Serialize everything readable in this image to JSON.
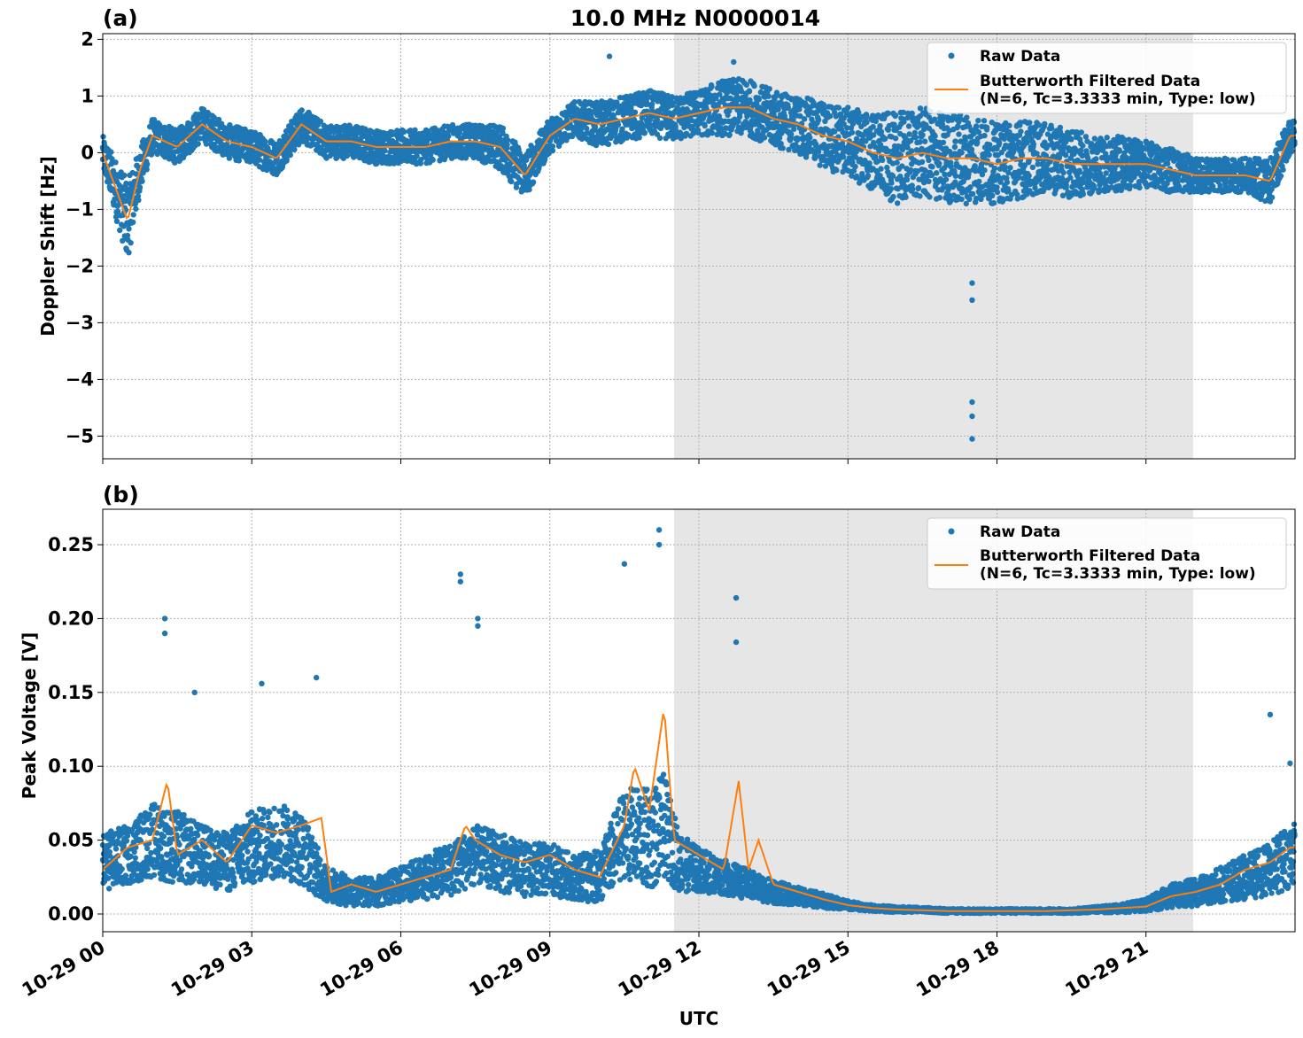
{
  "figure": {
    "title": "10.0 MHz N0000014",
    "xlabel": "UTC"
  },
  "colors": {
    "raw": "#1f77b4",
    "filtered": "#ff7f0e",
    "shade": "#e6e6e6",
    "grid": "#b0b0b0"
  },
  "chart_data": [
    {
      "type": "scatter",
      "panel_label": "(a)",
      "ylabel": "Doppler Shift [Hz]",
      "xlim_hours": [
        0,
        24
      ],
      "ylim": [
        -5.4,
        2.1
      ],
      "yticks": [
        2,
        1,
        0,
        -1,
        -2,
        -3,
        -4,
        -5
      ],
      "ytick_labels": [
        "2",
        "1",
        "0",
        "−1",
        "−2",
        "−3",
        "−4",
        "−5"
      ],
      "xticks_hours": [
        0,
        3,
        6,
        9,
        12,
        15,
        18,
        21
      ],
      "grid": true,
      "legend_position": "top-right",
      "shaded_span_hours": [
        11.5,
        21.95
      ],
      "series": [
        {
          "name": "Raw Data",
          "style": "points",
          "x_hours": [
            0,
            0.25,
            0.5,
            0.75,
            1.0,
            1.5,
            2.0,
            2.5,
            3.0,
            3.5,
            4.0,
            4.5,
            5.0,
            5.5,
            6.0,
            6.5,
            7.0,
            7.5,
            8.0,
            8.5,
            9.0,
            9.5,
            10.0,
            10.5,
            11.0,
            11.5,
            12.0,
            12.5,
            13.0,
            13.5,
            14.0,
            14.5,
            15.0,
            15.5,
            16.0,
            16.5,
            17.0,
            17.5,
            18.0,
            18.5,
            19.0,
            19.5,
            20.0,
            20.5,
            21.0,
            21.5,
            22.0,
            22.5,
            23.0,
            23.5,
            23.9
          ],
          "center": [
            0.0,
            -0.6,
            -1.2,
            -0.3,
            0.3,
            0.1,
            0.5,
            0.2,
            0.1,
            -0.1,
            0.5,
            0.2,
            0.2,
            0.1,
            0.1,
            0.1,
            0.2,
            0.2,
            0.1,
            -0.4,
            0.3,
            0.6,
            0.5,
            0.6,
            0.7,
            0.6,
            0.7,
            0.8,
            0.8,
            0.6,
            0.5,
            0.3,
            0.2,
            0.0,
            -0.1,
            0.0,
            -0.1,
            -0.1,
            -0.2,
            -0.1,
            -0.1,
            -0.2,
            -0.2,
            -0.2,
            -0.2,
            -0.3,
            -0.4,
            -0.4,
            -0.4,
            -0.5,
            0.3
          ],
          "spread": [
            0.3,
            0.5,
            0.7,
            0.4,
            0.3,
            0.3,
            0.3,
            0.3,
            0.3,
            0.3,
            0.3,
            0.3,
            0.3,
            0.3,
            0.3,
            0.3,
            0.3,
            0.3,
            0.4,
            0.4,
            0.3,
            0.3,
            0.4,
            0.4,
            0.4,
            0.4,
            0.4,
            0.5,
            0.5,
            0.5,
            0.5,
            0.6,
            0.6,
            0.7,
            0.8,
            0.8,
            0.8,
            0.8,
            0.7,
            0.7,
            0.6,
            0.6,
            0.5,
            0.5,
            0.4,
            0.4,
            0.3,
            0.3,
            0.3,
            0.4,
            0.3
          ],
          "outliers": [
            [
              17.5,
              -2.3
            ],
            [
              17.5,
              -2.6
            ],
            [
              17.5,
              -4.4
            ],
            [
              17.5,
              -4.65
            ],
            [
              17.5,
              -5.05
            ],
            [
              10.2,
              1.7
            ],
            [
              12.7,
              1.6
            ]
          ]
        },
        {
          "name": "Butterworth Filtered Data\n(N=6, Tc=3.3333 min, Type: low)",
          "style": "line",
          "x_hours": [
            0,
            0.25,
            0.5,
            0.75,
            1.0,
            1.5,
            2.0,
            2.5,
            3.0,
            3.5,
            4.0,
            4.5,
            5.0,
            5.5,
            6.0,
            6.5,
            7.0,
            7.5,
            8.0,
            8.5,
            9.0,
            9.5,
            10.0,
            10.5,
            11.0,
            11.5,
            12.0,
            12.5,
            13.0,
            13.5,
            14.0,
            14.5,
            15.0,
            15.5,
            16.0,
            16.5,
            17.0,
            17.5,
            18.0,
            18.5,
            19.0,
            19.5,
            20.0,
            20.5,
            21.0,
            21.5,
            22.0,
            22.5,
            23.0,
            23.5,
            23.9
          ],
          "y": [
            0.0,
            -0.6,
            -1.2,
            -0.3,
            0.3,
            0.1,
            0.5,
            0.2,
            0.1,
            -0.1,
            0.5,
            0.2,
            0.2,
            0.1,
            0.1,
            0.1,
            0.2,
            0.2,
            0.1,
            -0.4,
            0.3,
            0.6,
            0.5,
            0.6,
            0.7,
            0.6,
            0.7,
            0.8,
            0.8,
            0.6,
            0.5,
            0.3,
            0.2,
            0.0,
            -0.1,
            0.0,
            -0.1,
            -0.1,
            -0.2,
            -0.1,
            -0.1,
            -0.2,
            -0.2,
            -0.2,
            -0.2,
            -0.3,
            -0.4,
            -0.4,
            -0.4,
            -0.5,
            0.3
          ]
        }
      ]
    },
    {
      "type": "scatter",
      "panel_label": "(b)",
      "ylabel": "Peak Voltage [V]",
      "xlim_hours": [
        0,
        24
      ],
      "ylim": [
        -0.012,
        0.274
      ],
      "yticks": [
        0.25,
        0.2,
        0.15,
        0.1,
        0.05,
        0.0
      ],
      "ytick_labels": [
        "0.25",
        "0.20",
        "0.15",
        "0.10",
        "0.05",
        "0.00"
      ],
      "xticks_hours": [
        0,
        3,
        6,
        9,
        12,
        15,
        18,
        21
      ],
      "xtick_labels": [
        "10-29 00",
        "10-29 03",
        "10-29 06",
        "10-29 09",
        "10-29 12",
        "10-29 15",
        "10-29 18",
        "10-29 21"
      ],
      "grid": true,
      "legend_position": "top-right",
      "shaded_span_hours": [
        11.5,
        21.95
      ],
      "series": [
        {
          "name": "Raw Data",
          "style": "points",
          "x_hours": [
            0,
            0.5,
            1.0,
            1.5,
            2.0,
            2.5,
            3.0,
            3.5,
            4.0,
            4.5,
            5.0,
            5.5,
            6.0,
            6.5,
            7.0,
            7.5,
            8.0,
            8.5,
            9.0,
            9.5,
            10.0,
            10.5,
            11.0,
            11.3,
            11.6,
            12.0,
            12.5,
            13.0,
            13.5,
            14.0,
            14.5,
            15.0,
            15.5,
            16.0,
            16.5,
            17.0,
            17.5,
            18.0,
            18.5,
            19.0,
            19.5,
            20.0,
            20.5,
            21.0,
            21.5,
            22.0,
            22.5,
            23.0,
            23.5,
            23.9
          ],
          "center": [
            0.035,
            0.04,
            0.05,
            0.045,
            0.04,
            0.035,
            0.045,
            0.05,
            0.045,
            0.02,
            0.015,
            0.015,
            0.02,
            0.025,
            0.03,
            0.04,
            0.035,
            0.03,
            0.03,
            0.025,
            0.025,
            0.055,
            0.05,
            0.06,
            0.035,
            0.03,
            0.025,
            0.02,
            0.015,
            0.012,
            0.009,
            0.006,
            0.004,
            0.003,
            0.003,
            0.002,
            0.002,
            0.002,
            0.002,
            0.002,
            0.002,
            0.003,
            0.004,
            0.006,
            0.012,
            0.015,
            0.02,
            0.025,
            0.03,
            0.04
          ],
          "spread": [
            0.02,
            0.02,
            0.025,
            0.025,
            0.02,
            0.02,
            0.025,
            0.025,
            0.025,
            0.012,
            0.01,
            0.01,
            0.012,
            0.015,
            0.018,
            0.02,
            0.02,
            0.018,
            0.018,
            0.015,
            0.018,
            0.03,
            0.035,
            0.035,
            0.02,
            0.015,
            0.012,
            0.01,
            0.008,
            0.006,
            0.005,
            0.003,
            0.002,
            0.002,
            0.0015,
            0.0015,
            0.0015,
            0.0015,
            0.0015,
            0.0015,
            0.0015,
            0.002,
            0.003,
            0.004,
            0.008,
            0.01,
            0.012,
            0.015,
            0.018,
            0.022
          ],
          "outliers": [
            [
              1.25,
              0.2
            ],
            [
              1.25,
              0.19
            ],
            [
              7.2,
              0.23
            ],
            [
              7.2,
              0.225
            ],
            [
              7.55,
              0.2
            ],
            [
              7.55,
              0.195
            ],
            [
              10.5,
              0.237
            ],
            [
              11.2,
              0.26
            ],
            [
              11.2,
              0.25
            ],
            [
              12.75,
              0.214
            ],
            [
              12.75,
              0.184
            ],
            [
              4.3,
              0.16
            ],
            [
              3.2,
              0.156
            ],
            [
              1.85,
              0.15
            ],
            [
              23.5,
              0.135
            ],
            [
              23.9,
              0.102
            ]
          ]
        },
        {
          "name": "Butterworth Filtered Data\n(N=6, Tc=3.3333 min, Type: low)",
          "style": "line",
          "x_hours": [
            0,
            0.5,
            1.0,
            1.3,
            1.5,
            2.0,
            2.5,
            3.0,
            3.5,
            4.0,
            4.4,
            4.6,
            5.0,
            5.5,
            6.0,
            6.5,
            7.0,
            7.3,
            7.5,
            8.0,
            8.5,
            9.0,
            9.5,
            10.0,
            10.5,
            10.7,
            11.0,
            11.3,
            11.5,
            12.0,
            12.5,
            12.8,
            13.0,
            13.2,
            13.5,
            14.0,
            14.5,
            15.0,
            15.5,
            16.0,
            16.5,
            17.0,
            17.5,
            18.0,
            18.5,
            19.0,
            19.5,
            20.0,
            20.5,
            21.0,
            21.5,
            22.0,
            22.5,
            23.0,
            23.5,
            23.9
          ],
          "y": [
            0.03,
            0.045,
            0.05,
            0.09,
            0.04,
            0.05,
            0.035,
            0.06,
            0.055,
            0.06,
            0.065,
            0.015,
            0.02,
            0.015,
            0.02,
            0.025,
            0.03,
            0.06,
            0.05,
            0.04,
            0.035,
            0.04,
            0.03,
            0.025,
            0.06,
            0.1,
            0.07,
            0.14,
            0.05,
            0.04,
            0.03,
            0.09,
            0.03,
            0.05,
            0.02,
            0.015,
            0.01,
            0.006,
            0.004,
            0.003,
            0.0025,
            0.002,
            0.002,
            0.002,
            0.002,
            0.002,
            0.0025,
            0.003,
            0.004,
            0.005,
            0.012,
            0.015,
            0.02,
            0.03,
            0.035,
            0.045
          ]
        }
      ]
    }
  ]
}
